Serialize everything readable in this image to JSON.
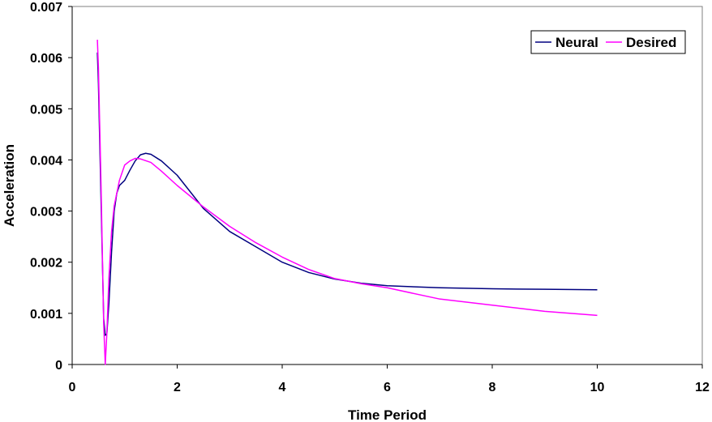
{
  "chart_data": {
    "type": "line",
    "xlabel": "Time Period",
    "ylabel": "Acceleration",
    "xlim": [
      0,
      12
    ],
    "ylim": [
      0,
      0.007
    ],
    "x_ticks": [
      "0",
      "2",
      "4",
      "6",
      "8",
      "10",
      "12"
    ],
    "y_ticks": [
      "0",
      "0.001",
      "0.002",
      "0.003",
      "0.004",
      "0.005",
      "0.006",
      "0.007"
    ],
    "grid": false,
    "legend_position": "top-right",
    "series": [
      {
        "name": "Neural",
        "color": "#000080",
        "points": [
          [
            0.48,
            0.0061
          ],
          [
            0.5,
            0.0055
          ],
          [
            0.55,
            0.0032
          ],
          [
            0.6,
            0.0009
          ],
          [
            0.63,
            0.00057
          ],
          [
            0.66,
            0.0006
          ],
          [
            0.7,
            0.0012
          ],
          [
            0.75,
            0.0022
          ],
          [
            0.8,
            0.003
          ],
          [
            0.85,
            0.00335
          ],
          [
            0.9,
            0.0035
          ],
          [
            1.0,
            0.0036
          ],
          [
            1.1,
            0.0038
          ],
          [
            1.2,
            0.00398
          ],
          [
            1.3,
            0.0041
          ],
          [
            1.4,
            0.00413
          ],
          [
            1.5,
            0.00411
          ],
          [
            1.7,
            0.00398
          ],
          [
            2.0,
            0.0037
          ],
          [
            2.5,
            0.00305
          ],
          [
            3.0,
            0.0026
          ],
          [
            3.5,
            0.0023
          ],
          [
            4.0,
            0.002
          ],
          [
            4.5,
            0.0018
          ],
          [
            5.0,
            0.00167
          ],
          [
            5.5,
            0.00159
          ],
          [
            6.0,
            0.00154
          ],
          [
            7.0,
            0.0015
          ],
          [
            8.0,
            0.00148
          ],
          [
            9.0,
            0.00147
          ],
          [
            10.0,
            0.00146
          ]
        ]
      },
      {
        "name": "Desired",
        "color": "#FF00FF",
        "points": [
          [
            0.48,
            0.00635
          ],
          [
            0.5,
            0.0058
          ],
          [
            0.55,
            0.0035
          ],
          [
            0.6,
            0.0008
          ],
          [
            0.63,
            0.0
          ],
          [
            0.66,
            0.0006
          ],
          [
            0.7,
            0.0017
          ],
          [
            0.75,
            0.0026
          ],
          [
            0.8,
            0.0031
          ],
          [
            0.9,
            0.0036
          ],
          [
            1.0,
            0.0039
          ],
          [
            1.1,
            0.00398
          ],
          [
            1.2,
            0.00403
          ],
          [
            1.3,
            0.00402
          ],
          [
            1.5,
            0.00395
          ],
          [
            1.7,
            0.00378
          ],
          [
            2.0,
            0.0035
          ],
          [
            2.5,
            0.00308
          ],
          [
            3.0,
            0.0027
          ],
          [
            3.5,
            0.00238
          ],
          [
            4.0,
            0.0021
          ],
          [
            4.5,
            0.00186
          ],
          [
            5.0,
            0.00168
          ],
          [
            5.5,
            0.00158
          ],
          [
            6.0,
            0.0015
          ],
          [
            7.0,
            0.00128
          ],
          [
            8.0,
            0.00116
          ],
          [
            9.0,
            0.00104
          ],
          [
            10.0,
            0.00096
          ]
        ]
      }
    ]
  }
}
